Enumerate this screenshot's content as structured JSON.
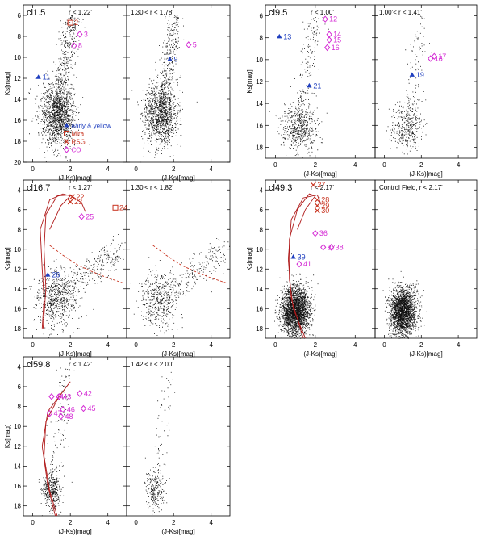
{
  "figure": {
    "x_label": "(J-Ks)[mag]",
    "y_label": "Ks[mag]",
    "x_ticks": [
      0,
      2,
      4
    ],
    "legend": [
      {
        "marker": "triangle",
        "label": "early & yellow",
        "color": "#1f3fbf"
      },
      {
        "marker": "square",
        "label": "Mira",
        "color": "#c8321e"
      },
      {
        "marker": "cross",
        "label": "RSG",
        "color": "#c8321e"
      },
      {
        "marker": "diamond",
        "label": "CO",
        "color": "#d42bd4"
      }
    ]
  },
  "chart_data": [
    {
      "type": "scatter",
      "titles": [
        "cl1.5",
        "r < 1.22'",
        "1.30'< r < 1.78'"
      ],
      "xlim": [
        -0.5,
        5
      ],
      "ylim": [
        20,
        5
      ],
      "y_ticks": [
        6,
        8,
        10,
        12,
        14,
        16,
        18,
        20
      ],
      "labeled": [
        {
          "id": "2",
          "x": 2.0,
          "y": 6.7,
          "type": "Mira"
        },
        {
          "id": "3",
          "x": 2.5,
          "y": 7.8,
          "type": "CO"
        },
        {
          "id": "8",
          "x": 2.2,
          "y": 8.9,
          "type": "CO"
        },
        {
          "id": "11",
          "x": 0.3,
          "y": 11.9,
          "type": "early"
        },
        {
          "id": "9",
          "x": 1.8,
          "y": 10.2,
          "type": "early"
        },
        {
          "id": "5",
          "x": 2.8,
          "y": 8.8,
          "type": "CO"
        }
      ]
    },
    {
      "type": "scatter",
      "titles": [
        "cl9.5",
        "r < 1.00'",
        "1.00'< r < 1.41'"
      ],
      "xlim": [
        -0.5,
        5
      ],
      "ylim": [
        19,
        5
      ],
      "y_ticks": [
        6,
        8,
        10,
        12,
        14,
        16,
        18
      ],
      "labeled": [
        {
          "id": "12",
          "x": 2.5,
          "y": 6.3,
          "type": "CO"
        },
        {
          "id": "13",
          "x": 0.2,
          "y": 7.9,
          "type": "early"
        },
        {
          "id": "14",
          "x": 2.7,
          "y": 7.7,
          "type": "CO"
        },
        {
          "id": "15",
          "x": 2.7,
          "y": 8.2,
          "type": "CO"
        },
        {
          "id": "16",
          "x": 2.6,
          "y": 8.9,
          "type": "CO"
        },
        {
          "id": "21",
          "x": 1.7,
          "y": 12.4,
          "type": "early"
        },
        {
          "id": "17",
          "x": 2.7,
          "y": 9.7,
          "type": "CO"
        },
        {
          "id": "18",
          "x": 2.5,
          "y": 9.9,
          "type": "CO"
        },
        {
          "id": "19",
          "x": 1.5,
          "y": 11.4,
          "type": "early"
        }
      ]
    },
    {
      "type": "scatter",
      "titles": [
        "cl16.7",
        "r < 1.27'",
        "1.30'< r < 1.82'"
      ],
      "xlim": [
        -0.5,
        5
      ],
      "ylim": [
        19,
        3
      ],
      "y_ticks": [
        4,
        6,
        8,
        10,
        12,
        14,
        16,
        18
      ],
      "labeled": [
        {
          "id": "22",
          "x": 2.1,
          "y": 4.7,
          "type": "RSG"
        },
        {
          "id": "23",
          "x": 2.0,
          "y": 5.2,
          "type": "RSG"
        },
        {
          "id": "24",
          "x": 4.4,
          "y": 5.8,
          "type": "Mira"
        },
        {
          "id": "25",
          "x": 2.6,
          "y": 6.7,
          "type": "CO"
        },
        {
          "id": "26",
          "x": 0.8,
          "y": 12.6,
          "type": "early"
        }
      ]
    },
    {
      "type": "scatter",
      "titles": [
        "cl49.3",
        "r < 2.17'",
        "Control Field, r < 2.17'"
      ],
      "xlim": [
        -0.5,
        5
      ],
      "ylim": [
        19,
        3
      ],
      "y_ticks": [
        4,
        6,
        8,
        10,
        12,
        14,
        16,
        18
      ],
      "labeled": [
        {
          "id": "27",
          "x": 1.9,
          "y": 3.5,
          "type": "RSG"
        },
        {
          "id": "28",
          "x": 2.1,
          "y": 5.0,
          "type": "RSG"
        },
        {
          "id": "29",
          "x": 2.1,
          "y": 5.6,
          "type": "RSG"
        },
        {
          "id": "30",
          "x": 2.1,
          "y": 6.1,
          "type": "RSG"
        },
        {
          "id": "36",
          "x": 2.0,
          "y": 8.4,
          "type": "CO"
        },
        {
          "id": "37",
          "x": 2.4,
          "y": 9.8,
          "type": "CO"
        },
        {
          "id": "38",
          "x": 2.8,
          "y": 9.8,
          "type": "CO"
        },
        {
          "id": "39",
          "x": 0.9,
          "y": 10.8,
          "type": "early"
        },
        {
          "id": "41",
          "x": 1.2,
          "y": 11.5,
          "type": "CO"
        }
      ]
    },
    {
      "type": "scatter",
      "titles": [
        "cl59.8",
        "r < 1.42'",
        "1.42'< r < 2.00'"
      ],
      "xlim": [
        -0.5,
        5
      ],
      "ylim": [
        19,
        3
      ],
      "y_ticks": [
        4,
        6,
        8,
        10,
        12,
        14,
        16,
        18
      ],
      "labeled": [
        {
          "id": "42",
          "x": 2.5,
          "y": 6.7,
          "type": "CO"
        },
        {
          "id": "44",
          "x": 1.0,
          "y": 7.0,
          "type": "CO"
        },
        {
          "id": "43",
          "x": 1.4,
          "y": 7.0,
          "type": "CO"
        },
        {
          "id": "45",
          "x": 2.7,
          "y": 8.2,
          "type": "CO"
        },
        {
          "id": "46",
          "x": 1.6,
          "y": 8.3,
          "type": "CO"
        },
        {
          "id": "47",
          "x": 0.9,
          "y": 8.7,
          "type": "CO"
        },
        {
          "id": "48",
          "x": 1.5,
          "y": 9.0,
          "type": "CO"
        }
      ]
    }
  ]
}
